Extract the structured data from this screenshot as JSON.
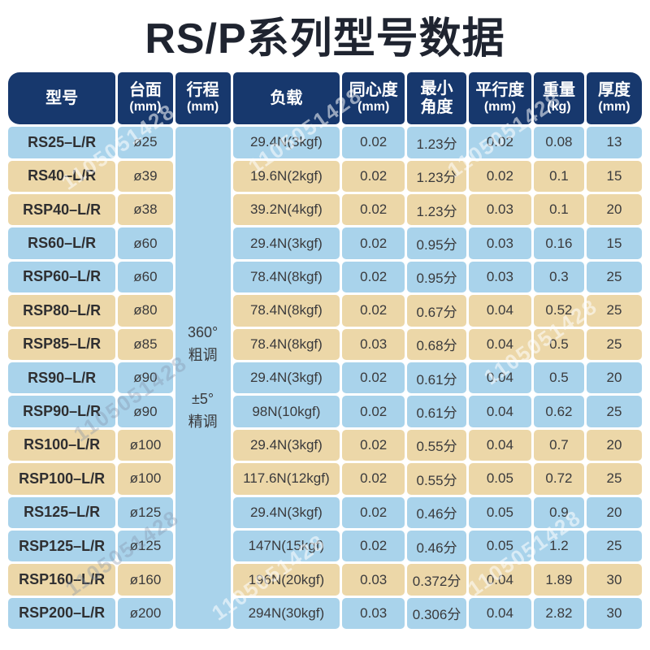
{
  "page": {
    "title": "RS/P系列型号数据",
    "watermark_text": "1105051428"
  },
  "colors": {
    "header_navy": "#17386d",
    "row_blue": "#a9d3eb",
    "row_tan": "#ecd7a8",
    "title_text": "#1f2430",
    "cell_text": "#3a3a3c"
  },
  "table": {
    "columns": [
      {
        "label": "型号",
        "unit": ""
      },
      {
        "label": "台面",
        "unit": "(mm)"
      },
      {
        "label": "行程",
        "unit": "(mm)"
      },
      {
        "label": "负载",
        "unit": ""
      },
      {
        "label": "同心度",
        "unit": "(mm)"
      },
      {
        "label": "最小",
        "unit": "角度"
      },
      {
        "label": "平行度",
        "unit": "(mm)"
      },
      {
        "label": "重量",
        "unit": "(kg)"
      },
      {
        "label": "厚度",
        "unit": "(mm)"
      }
    ],
    "stroke_cell": {
      "lines": [
        "360°",
        "粗调",
        "±5°",
        "精调"
      ]
    },
    "rows": [
      {
        "tone": "blue",
        "model": "RS25–L/R",
        "surface": "ø25",
        "load": "29.4N(3kgf)",
        "concentricity": "0.02",
        "min_angle": "1.23分",
        "parallelism": "0.02",
        "weight": "0.08",
        "thickness": "13"
      },
      {
        "tone": "tan",
        "model": "RS40–L/R",
        "surface": "ø39",
        "load": "19.6N(2kgf)",
        "concentricity": "0.02",
        "min_angle": "1.23分",
        "parallelism": "0.02",
        "weight": "0.1",
        "thickness": "15"
      },
      {
        "tone": "tan",
        "model": "RSP40–L/R",
        "surface": "ø38",
        "load": "39.2N(4kgf)",
        "concentricity": "0.02",
        "min_angle": "1.23分",
        "parallelism": "0.03",
        "weight": "0.1",
        "thickness": "20"
      },
      {
        "tone": "blue",
        "model": "RS60–L/R",
        "surface": "ø60",
        "load": "29.4N(3kgf)",
        "concentricity": "0.02",
        "min_angle": "0.95分",
        "parallelism": "0.03",
        "weight": "0.16",
        "thickness": "15"
      },
      {
        "tone": "blue",
        "model": "RSP60–L/R",
        "surface": "ø60",
        "load": "78.4N(8kgf)",
        "concentricity": "0.02",
        "min_angle": "0.95分",
        "parallelism": "0.03",
        "weight": "0.3",
        "thickness": "25"
      },
      {
        "tone": "tan",
        "model": "RSP80–L/R",
        "surface": "ø80",
        "load": "78.4N(8kgf)",
        "concentricity": "0.02",
        "min_angle": "0.67分",
        "parallelism": "0.04",
        "weight": "0.52",
        "thickness": "25"
      },
      {
        "tone": "tan",
        "model": "RSP85–L/R",
        "surface": "ø85",
        "load": "78.4N(8kgf)",
        "concentricity": "0.03",
        "min_angle": "0.68分",
        "parallelism": "0.04",
        "weight": "0.5",
        "thickness": "25"
      },
      {
        "tone": "blue",
        "model": "RS90–L/R",
        "surface": "ø90",
        "load": "29.4N(3kgf)",
        "concentricity": "0.02",
        "min_angle": "0.61分",
        "parallelism": "0.04",
        "weight": "0.5",
        "thickness": "20"
      },
      {
        "tone": "blue",
        "model": "RSP90–L/R",
        "surface": "ø90",
        "load": "98N(10kgf)",
        "concentricity": "0.02",
        "min_angle": "0.61分",
        "parallelism": "0.04",
        "weight": "0.62",
        "thickness": "25"
      },
      {
        "tone": "tan",
        "model": "RS100–L/R",
        "surface": "ø100",
        "load": "29.4N(3kgf)",
        "concentricity": "0.02",
        "min_angle": "0.55分",
        "parallelism": "0.04",
        "weight": "0.7",
        "thickness": "20"
      },
      {
        "tone": "tan",
        "model": "RSP100–L/R",
        "surface": "ø100",
        "load": "117.6N(12kgf)",
        "concentricity": "0.02",
        "min_angle": "0.55分",
        "parallelism": "0.05",
        "weight": "0.72",
        "thickness": "25"
      },
      {
        "tone": "blue",
        "model": "RS125–L/R",
        "surface": "ø125",
        "load": "29.4N(3kgf)",
        "concentricity": "0.02",
        "min_angle": "0.46分",
        "parallelism": "0.05",
        "weight": "0.9",
        "thickness": "20"
      },
      {
        "tone": "blue",
        "model": "RSP125–L/R",
        "surface": "ø125",
        "load": "147N(15kgf)",
        "concentricity": "0.02",
        "min_angle": "0.46分",
        "parallelism": "0.05",
        "weight": "1.2",
        "thickness": "25"
      },
      {
        "tone": "tan",
        "model": "RSP160–L/R",
        "surface": "ø160",
        "load": "196N(20kgf)",
        "concentricity": "0.03",
        "min_angle": "0.372分",
        "parallelism": "0.04",
        "weight": "1.89",
        "thickness": "30"
      },
      {
        "tone": "blue",
        "model": "RSP200–L/R",
        "surface": "ø200",
        "load": "294N(30kgf)",
        "concentricity": "0.03",
        "min_angle": "0.306分",
        "parallelism": "0.04",
        "weight": "2.82",
        "thickness": "30"
      }
    ]
  }
}
